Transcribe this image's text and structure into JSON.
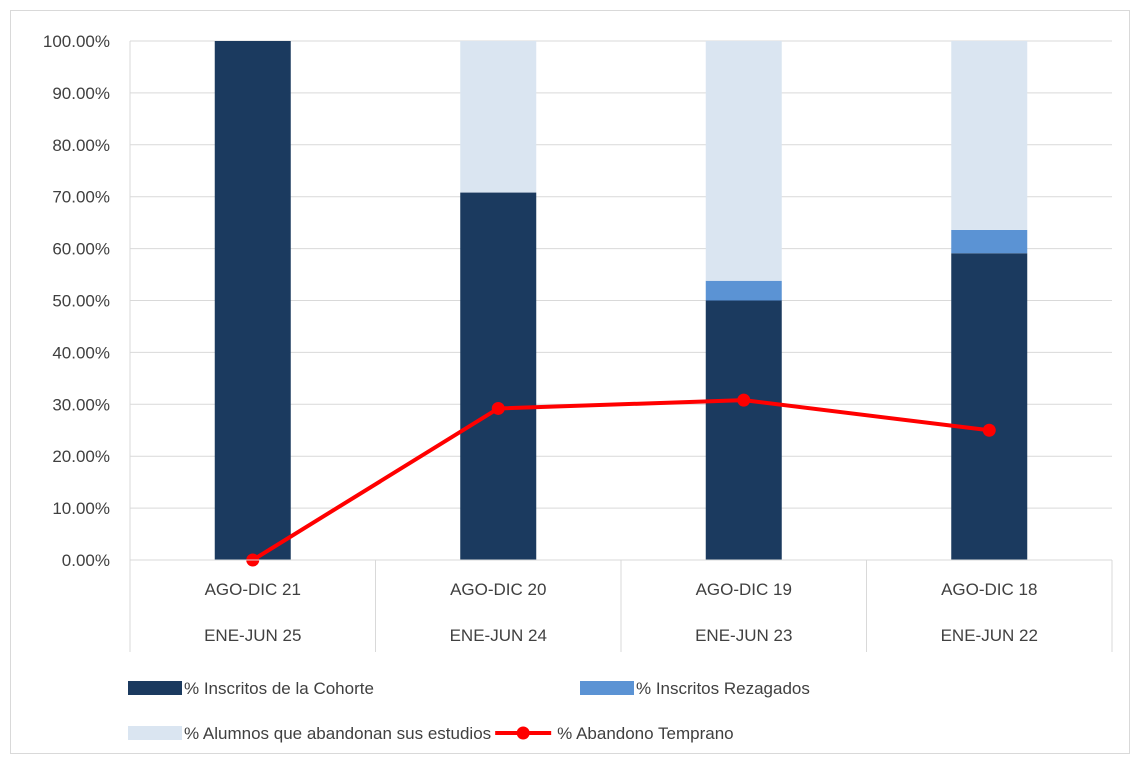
{
  "chart_data": {
    "type": "bar",
    "stacked": true,
    "categories": [
      [
        "AGO-DIC 21",
        "ENE-JUN 25"
      ],
      [
        "AGO-DIC 20",
        "ENE-JUN 24"
      ],
      [
        "AGO-DIC 19",
        "ENE-JUN 23"
      ],
      [
        "AGO-DIC 18",
        "ENE-JUN 22"
      ]
    ],
    "series": [
      {
        "name": "% Inscritos de la Cohorte",
        "type": "bar",
        "color": "#1b3a5f",
        "values": [
          100.0,
          70.8,
          50.0,
          59.1
        ]
      },
      {
        "name": "% Inscritos Rezagados",
        "type": "bar",
        "color": "#5b93d4",
        "values": [
          0.0,
          0.0,
          3.8,
          4.5
        ]
      },
      {
        "name": "% Alumnos que abandonan sus estudios",
        "type": "bar",
        "color": "#dae5f1",
        "values": [
          0.0,
          29.2,
          46.2,
          36.4
        ]
      },
      {
        "name": "% Abandono Temprano",
        "type": "line",
        "color": "#ff0000",
        "values": [
          0.0,
          29.2,
          30.8,
          25.0
        ]
      }
    ],
    "y_ticks": [
      "0.00%",
      "10.00%",
      "20.00%",
      "30.00%",
      "40.00%",
      "50.00%",
      "60.00%",
      "70.00%",
      "80.00%",
      "90.00%",
      "100.00%"
    ],
    "ylim": [
      0,
      100
    ],
    "grid": true,
    "legend_position": "bottom"
  }
}
